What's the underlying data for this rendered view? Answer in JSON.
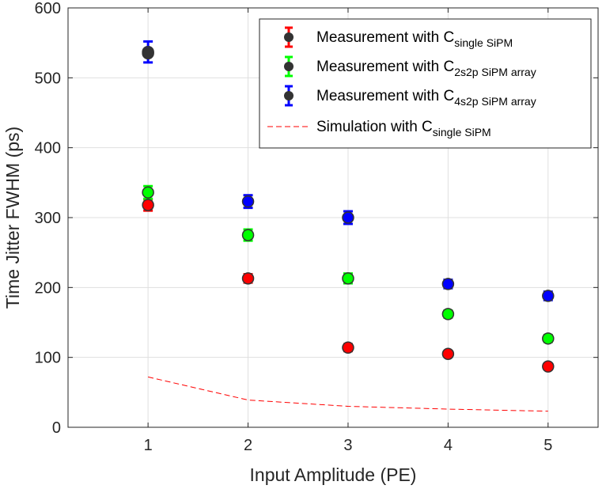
{
  "chart_data": {
    "type": "scatter",
    "xlabel": "Input Amplitude (PE)",
    "ylabel": "Time Jitter FWHM (ps)",
    "xlim": [
      0.2,
      5.5
    ],
    "ylim": [
      0,
      600
    ],
    "xticks": [
      1,
      2,
      3,
      4,
      5
    ],
    "yticks": [
      0,
      100,
      200,
      300,
      400,
      500,
      600
    ],
    "grid": true,
    "legend_position": "top-right",
    "series": [
      {
        "name": "Measurement with C",
        "sub": "single SiPM",
        "kind": "errorbar",
        "color": "#ff0000",
        "x": [
          1,
          2,
          3,
          4,
          5
        ],
        "values": [
          318,
          213,
          114,
          105,
          87
        ],
        "errors": [
          8,
          6,
          5,
          4,
          4
        ]
      },
      {
        "name": "Measurement with C",
        "sub": "2s2p SiPM array",
        "kind": "errorbar",
        "color": "#00ff00",
        "x": [
          1,
          2,
          3,
          4,
          5
        ],
        "values": [
          336,
          275,
          213,
          162,
          127
        ],
        "errors": [
          9,
          8,
          7,
          5,
          5
        ]
      },
      {
        "name": "Measurement with C",
        "sub": "4s2p SiPM array",
        "kind": "errorbar",
        "color": "#0000ff",
        "x": [
          1,
          2,
          3,
          4,
          5
        ],
        "values": [
          537,
          323,
          300,
          205,
          188
        ],
        "errors": [
          15,
          9,
          9,
          6,
          6
        ]
      },
      {
        "name": "Simulation with C",
        "sub": "single SiPM",
        "kind": "line",
        "color": "#ff0000",
        "x": [
          1,
          2,
          3,
          4,
          5
        ],
        "values": [
          72,
          39,
          30,
          26,
          23
        ]
      }
    ],
    "extra_points": {
      "color": "#333333",
      "x": [
        1
      ],
      "values": [
        535
      ]
    }
  }
}
